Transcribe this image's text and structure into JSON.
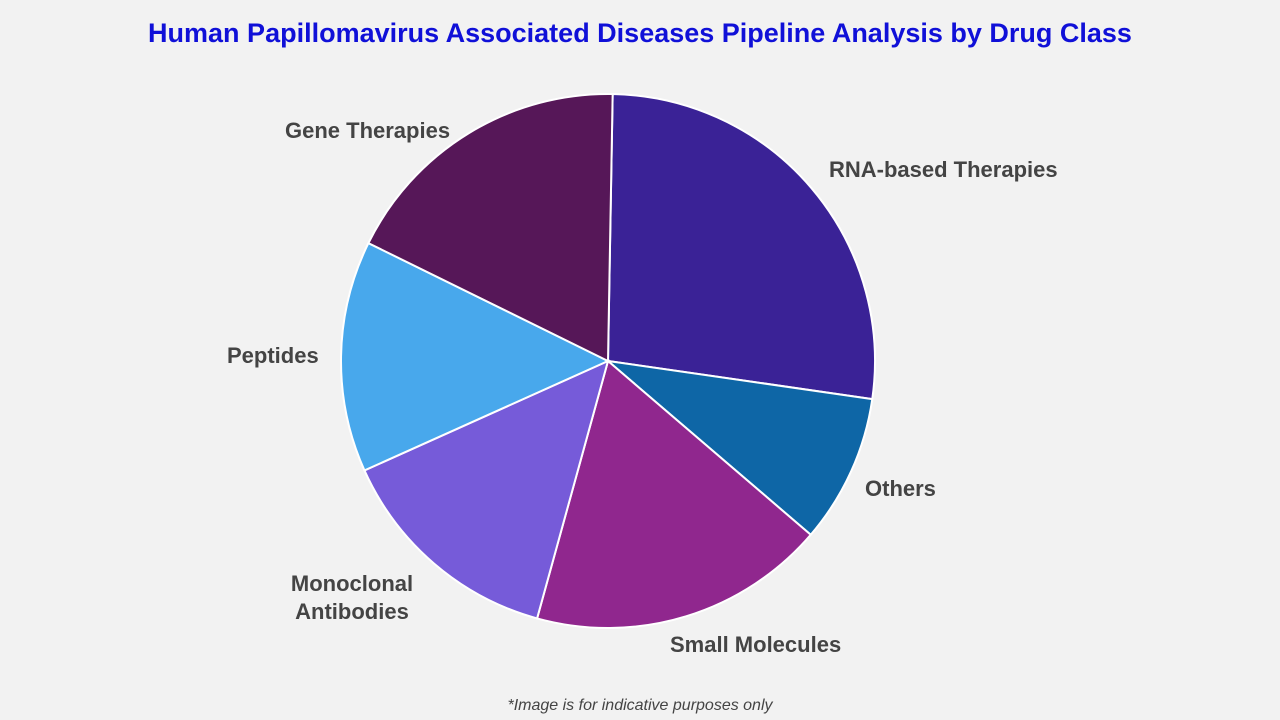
{
  "chart_data": {
    "type": "pie",
    "title": "Human Papillomavirus Associated Diseases Pipeline Analysis by Drug Class",
    "start_angle_deg": 1,
    "direction": "clockwise",
    "slices": [
      {
        "label": "RNA-based Therapies",
        "value": 27,
        "color": "#3a2296"
      },
      {
        "label": "Others",
        "value": 9,
        "color": "#0e66a6"
      },
      {
        "label": "Small Molecules",
        "value": 18,
        "color": "#90278e"
      },
      {
        "label": "Monoclonal Antibodies",
        "value": 14,
        "color": "#765bd9"
      },
      {
        "label": "Peptides",
        "value": 14,
        "color": "#48a8ec"
      },
      {
        "label": "Gene Therapies",
        "value": 18,
        "color": "#561758"
      }
    ],
    "footnote": "*Image is for indicative purposes only"
  }
}
